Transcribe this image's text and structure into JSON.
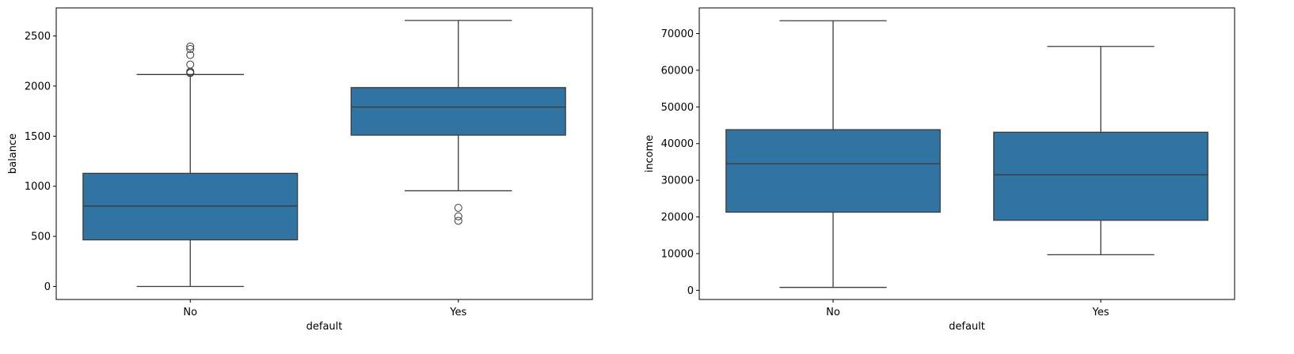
{
  "chart_data": [
    {
      "type": "box",
      "xlabel": "default",
      "ylabel": "balance",
      "categories": [
        "No",
        "Yes"
      ],
      "ylim": [
        -130,
        2780
      ],
      "yticks": [
        0,
        500,
        1000,
        1500,
        2000,
        2500
      ],
      "box_color": "#3274a1",
      "boxes": [
        {
          "category": "No",
          "whislo": 0,
          "q1": 465,
          "med": 803,
          "q3": 1129,
          "whishi": 2115,
          "fliers": [
            2130,
            2135,
            2145,
            2215,
            2310,
            2370,
            2395
          ]
        },
        {
          "category": "Yes",
          "whislo": 955,
          "q1": 1510,
          "med": 1790,
          "q3": 1985,
          "whishi": 2655,
          "fliers": [
            655,
            700,
            785
          ]
        }
      ]
    },
    {
      "type": "box",
      "xlabel": "default",
      "ylabel": "income",
      "categories": [
        "No",
        "Yes"
      ],
      "ylim": [
        -2500,
        77000
      ],
      "yticks": [
        0,
        10000,
        20000,
        30000,
        40000,
        50000,
        60000,
        70000
      ],
      "box_color": "#3274a1",
      "boxes": [
        {
          "category": "No",
          "whislo": 800,
          "q1": 21300,
          "med": 34500,
          "q3": 43800,
          "whishi": 73500,
          "fliers": []
        },
        {
          "category": "Yes",
          "whislo": 9700,
          "q1": 19100,
          "med": 31500,
          "q3": 43100,
          "whishi": 66500,
          "fliers": []
        }
      ]
    }
  ]
}
